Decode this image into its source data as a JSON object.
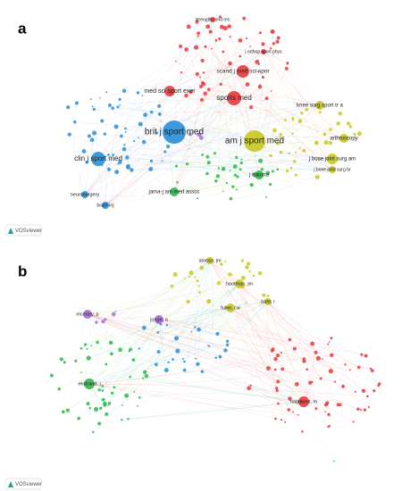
{
  "panels": [
    {
      "label": "a",
      "logo": "VOSviewer",
      "nodes": [
        "brit j sport med",
        "am j sport med",
        "clin j sport med",
        "sports med",
        "med sci sport exer",
        "scand j med sci spor",
        "knee surg sport tr a",
        "arthroscopy",
        "j bone joint surg am",
        "j bone joint surg br",
        "jama-j am med assoc",
        "j trauma",
        "neurosurgery",
        "brain inj",
        "strength cond res",
        "j orthop sport phys"
      ]
    },
    {
      "label": "b",
      "logo": "VOSviewer",
      "nodes": [
        "alonso, jm",
        "hootman, jm",
        "fuller, cw",
        "mccrory, p",
        "junge, a",
        "bahr, r",
        "hagglund, m",
        "ekstrand, j"
      ]
    }
  ]
}
